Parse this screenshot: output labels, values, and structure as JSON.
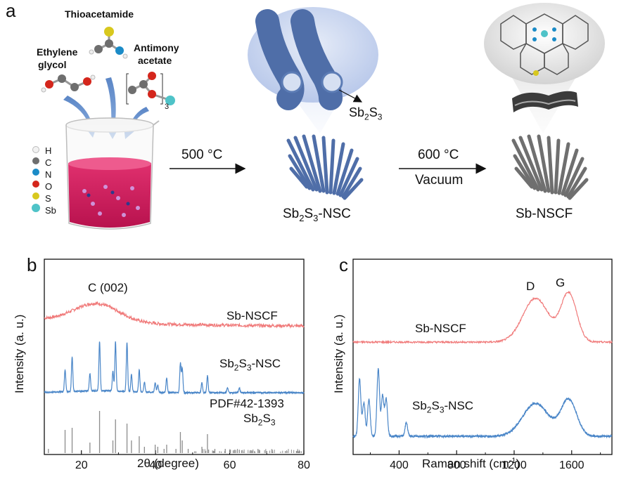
{
  "panel_a": {
    "letter": "a",
    "molecules": {
      "thioacetamide": "Thioacetamide",
      "ethylene_glycol_1": "Ethylene",
      "ethylene_glycol_2": "glycol",
      "antimony_acetate_1": "Antimony",
      "antimony_acetate_2": "acetate",
      "subscript_3": "3"
    },
    "legend": [
      {
        "symbol": "H",
        "color": "#f2f2f2"
      },
      {
        "symbol": "C",
        "color": "#6e6e6e"
      },
      {
        "symbol": "N",
        "color": "#1b8bc7"
      },
      {
        "symbol": "O",
        "color": "#d4261c"
      },
      {
        "symbol": "S",
        "color": "#d8c81e"
      },
      {
        "symbol": "Sb",
        "color": "#4fc3c8"
      }
    ],
    "step1": {
      "temp": "500 °C"
    },
    "step2": {
      "temp": "600 °C",
      "condition": "Vacuum"
    },
    "sb2s3_callout": {
      "base": "Sb",
      "sub1": "2",
      "mid": "S",
      "sub2": "3"
    },
    "product1": {
      "base": "Sb",
      "sub1": "2",
      "mid": "S",
      "sub2": "3",
      "suffix": "-NSC"
    },
    "product2": "Sb-NSCF"
  },
  "panel_b": {
    "letter": "b",
    "xlabel": "2θ (degree)",
    "ylabel": "Intensity (a. u.)",
    "peak_label": "C (002)",
    "series_labels": {
      "sbnscf": "Sb-NSCF",
      "sb2s3_base": "Sb",
      "sb2s3_sub1": "2",
      "sb2s3_mid": "S",
      "sb2s3_sub2": "3",
      "sb2s3_suffix": "-NSC",
      "pdf": "PDF#42-1393",
      "pdf_base": "Sb",
      "pdf_sub1": "2",
      "pdf_mid": "S",
      "pdf_sub2": "3"
    }
  },
  "panel_c": {
    "letter": "c",
    "xlabel_main": "Raman shift (cm",
    "xlabel_sup": "-1",
    "xlabel_end": ")",
    "ylabel": "Intensity (a. u.)",
    "band_D": "D",
    "band_G": "G",
    "series_labels": {
      "sbnscf": "Sb-NSCF",
      "sb2s3_base": "Sb",
      "sb2s3_sub1": "2",
      "sb2s3_mid": "S",
      "sb2s3_sub2": "3",
      "sb2s3_suffix": "-NSC"
    }
  },
  "chart_data": [
    {
      "type": "line",
      "xlim": [
        10,
        80
      ],
      "xticks": [
        "20",
        "40",
        "60",
        "80"
      ],
      "xtick_values": [
        20,
        40,
        60,
        80
      ],
      "colors": {
        "sbnscf": "#f07a7a",
        "sb2s3": "#4a86c8",
        "pdf": "#8c8c8c"
      },
      "series": [
        {
          "name": "Sb-NSCF",
          "broad_peak_center": 24,
          "broad_peak_width": 6
        },
        {
          "name": "Sb2S3-NSC",
          "peaks": [
            [
              15.6,
              0.45
            ],
            [
              17.5,
              0.7
            ],
            [
              22.3,
              0.35
            ],
            [
              24.9,
              1.0
            ],
            [
              28.5,
              0.4
            ],
            [
              29.2,
              1.0
            ],
            [
              32.3,
              1.0
            ],
            [
              33.5,
              0.35
            ],
            [
              35.6,
              0.45
            ],
            [
              37.0,
              0.2
            ],
            [
              39.9,
              0.2
            ],
            [
              40.6,
              0.15
            ],
            [
              43.0,
              0.3
            ],
            [
              46.7,
              0.6
            ],
            [
              47.2,
              0.5
            ],
            [
              52.5,
              0.2
            ],
            [
              54.0,
              0.35
            ],
            [
              59.4,
              0.1
            ],
            [
              62.6,
              0.1
            ]
          ]
        },
        {
          "name": "PDF#42-1393",
          "sticks": [
            [
              11.1,
              0.1
            ],
            [
              15.6,
              0.55
            ],
            [
              17.5,
              0.6
            ],
            [
              22.3,
              0.25
            ],
            [
              24.9,
              1.0
            ],
            [
              28.5,
              0.3
            ],
            [
              29.2,
              0.8
            ],
            [
              32.3,
              0.7
            ],
            [
              33.5,
              0.3
            ],
            [
              35.6,
              0.4
            ],
            [
              37.0,
              0.15
            ],
            [
              39.9,
              0.2
            ],
            [
              40.6,
              0.15
            ],
            [
              42.3,
              0.1
            ],
            [
              43.0,
              0.2
            ],
            [
              45.5,
              0.1
            ],
            [
              46.7,
              0.5
            ],
            [
              47.2,
              0.3
            ],
            [
              48.8,
              0.1
            ],
            [
              52.5,
              0.15
            ],
            [
              54.0,
              0.45
            ],
            [
              56.0,
              0.1
            ],
            [
              58.8,
              0.1
            ],
            [
              60.2,
              0.08
            ],
            [
              62.6,
              0.08
            ],
            [
              66.0,
              0.06
            ],
            [
              70.0,
              0.05
            ],
            [
              75.0,
              0.05
            ],
            [
              78.0,
              0.05
            ]
          ]
        }
      ]
    },
    {
      "type": "line",
      "xlim": [
        80,
        1880
      ],
      "xticks": [
        "400",
        "800",
        "1200",
        "1600"
      ],
      "xtick_values": [
        400,
        800,
        1200,
        1600
      ],
      "colors": {
        "sbnscf": "#f07a7a",
        "sb2s3": "#4a86c8"
      },
      "series": [
        {
          "name": "Sb-NSCF",
          "D_band": 1350,
          "G_band": 1580
        },
        {
          "name": "Sb2S3-NSC",
          "low_peaks": [
            [
              125,
              0.85
            ],
            [
              155,
              0.5
            ],
            [
              190,
              0.55
            ],
            [
              255,
              1.0
            ],
            [
              285,
              0.6
            ],
            [
              310,
              0.55
            ],
            [
              450,
              0.2
            ]
          ],
          "D_band": 1350,
          "G_band": 1580
        }
      ]
    }
  ]
}
